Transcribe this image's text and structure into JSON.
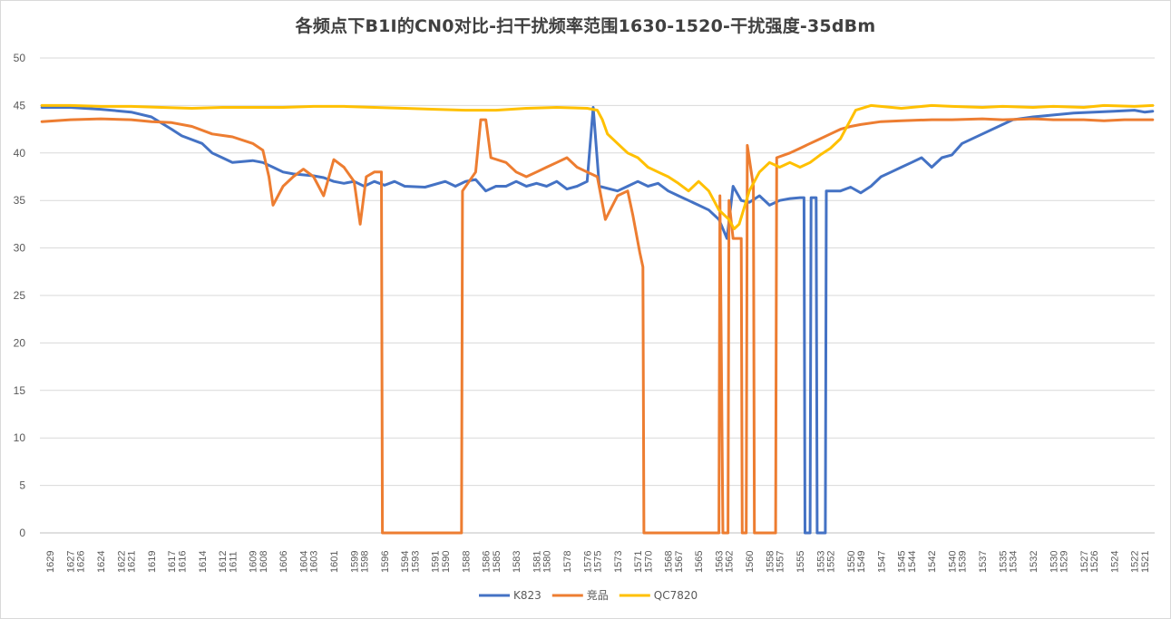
{
  "chart_data": {
    "type": "line",
    "title": "各频点下B1I的CN0对比-扫干扰频率范围1630-1520-干扰强度-35dBm",
    "xlabel": "",
    "ylabel": "",
    "ylim": [
      0,
      50
    ],
    "yticks": [
      0,
      5,
      10,
      15,
      20,
      25,
      30,
      35,
      40,
      45,
      50
    ],
    "xlim": [
      1630,
      1520
    ],
    "xticks": [
      1629,
      1627,
      1626,
      1624,
      1622,
      1621,
      1619,
      1617,
      1616,
      1614,
      1612,
      1611,
      1609,
      1608,
      1606,
      1604,
      1603,
      1601,
      1599,
      1598,
      1596,
      1594,
      1593,
      1591,
      1590,
      1588,
      1586,
      1585,
      1583,
      1581,
      1580,
      1578,
      1576,
      1575,
      1573,
      1571,
      1570,
      1568,
      1567,
      1565,
      1563,
      1562,
      1560,
      1558,
      1557,
      1555,
      1553,
      1552,
      1550,
      1549,
      1547,
      1545,
      1544,
      1542,
      1540,
      1539,
      1537,
      1535,
      1534,
      1532,
      1530,
      1529,
      1527,
      1526,
      1524,
      1522,
      1521
    ],
    "grid": "horizontal",
    "legend_position": "bottom",
    "series": [
      {
        "name": "K823",
        "color": "#4472c4",
        "points": [
          [
            1629.8,
            44.8
          ],
          [
            1627,
            44.8
          ],
          [
            1624,
            44.6
          ],
          [
            1621,
            44.3
          ],
          [
            1619,
            43.8
          ],
          [
            1617,
            42.5
          ],
          [
            1616,
            41.8
          ],
          [
            1614,
            41.0
          ],
          [
            1613,
            40.0
          ],
          [
            1612,
            39.5
          ],
          [
            1611,
            39.0
          ],
          [
            1609,
            39.2
          ],
          [
            1608,
            39.0
          ],
          [
            1607,
            38.5
          ],
          [
            1606,
            38.0
          ],
          [
            1605,
            37.8
          ],
          [
            1603,
            37.6
          ],
          [
            1602,
            37.4
          ],
          [
            1601,
            37.0
          ],
          [
            1600,
            36.8
          ],
          [
            1599,
            37.0
          ],
          [
            1598,
            36.5
          ],
          [
            1597,
            37.0
          ],
          [
            1596,
            36.6
          ],
          [
            1595,
            37.0
          ],
          [
            1594,
            36.5
          ],
          [
            1592,
            36.4
          ],
          [
            1590,
            37.0
          ],
          [
            1589,
            36.5
          ],
          [
            1588,
            37.0
          ],
          [
            1587,
            37.2
          ],
          [
            1586,
            36.0
          ],
          [
            1585,
            36.5
          ],
          [
            1584,
            36.5
          ],
          [
            1583,
            37.0
          ],
          [
            1582,
            36.5
          ],
          [
            1581,
            36.8
          ],
          [
            1580,
            36.5
          ],
          [
            1579,
            37.0
          ],
          [
            1578,
            36.2
          ],
          [
            1577,
            36.5
          ],
          [
            1576,
            37.0
          ],
          [
            1575.4,
            44.8
          ],
          [
            1574.8,
            36.5
          ],
          [
            1573,
            36.0
          ],
          [
            1572,
            36.5
          ],
          [
            1571,
            37.0
          ],
          [
            1570,
            36.5
          ],
          [
            1569,
            36.8
          ],
          [
            1568,
            36.0
          ],
          [
            1567,
            35.5
          ],
          [
            1566,
            35.0
          ],
          [
            1565,
            34.5
          ],
          [
            1564,
            34.0
          ],
          [
            1563,
            33.0
          ],
          [
            1562.2,
            31.0
          ],
          [
            1561.6,
            36.5
          ],
          [
            1560.8,
            35.0
          ],
          [
            1560,
            34.8
          ],
          [
            1559,
            35.5
          ],
          [
            1558,
            34.5
          ],
          [
            1557,
            35.0
          ],
          [
            1556,
            35.2
          ],
          [
            1555,
            35.3
          ],
          [
            1554.6,
            35.3
          ],
          [
            1554.5,
            0
          ],
          [
            1554,
            0
          ],
          [
            1553.9,
            35.3
          ],
          [
            1553.4,
            35.3
          ],
          [
            1553.3,
            0
          ],
          [
            1552.5,
            0
          ],
          [
            1552.4,
            36.0
          ],
          [
            1551,
            36.0
          ],
          [
            1550,
            36.4
          ],
          [
            1549,
            35.8
          ],
          [
            1548,
            36.5
          ],
          [
            1547,
            37.5
          ],
          [
            1546,
            38.0
          ],
          [
            1545,
            38.5
          ],
          [
            1544,
            39.0
          ],
          [
            1543,
            39.5
          ],
          [
            1542,
            38.5
          ],
          [
            1541,
            39.5
          ],
          [
            1540,
            39.8
          ],
          [
            1539,
            41.0
          ],
          [
            1537,
            42.0
          ],
          [
            1535,
            43.0
          ],
          [
            1534,
            43.5
          ],
          [
            1532,
            43.8
          ],
          [
            1530,
            44.0
          ],
          [
            1528,
            44.2
          ],
          [
            1526,
            44.3
          ],
          [
            1524,
            44.4
          ],
          [
            1522,
            44.5
          ],
          [
            1521,
            44.3
          ],
          [
            1520.2,
            44.4
          ]
        ]
      },
      {
        "name": "竞品",
        "color": "#ed7d31",
        "points": [
          [
            1629.8,
            43.3
          ],
          [
            1627,
            43.5
          ],
          [
            1624,
            43.6
          ],
          [
            1621,
            43.5
          ],
          [
            1619,
            43.3
          ],
          [
            1617,
            43.2
          ],
          [
            1615,
            42.8
          ],
          [
            1613,
            42.0
          ],
          [
            1611,
            41.7
          ],
          [
            1609,
            41.0
          ],
          [
            1608,
            40.3
          ],
          [
            1607.4,
            37.5
          ],
          [
            1607,
            34.5
          ],
          [
            1606,
            36.5
          ],
          [
            1605,
            37.5
          ],
          [
            1604,
            38.3
          ],
          [
            1603,
            37.5
          ],
          [
            1602,
            35.5
          ],
          [
            1601,
            39.3
          ],
          [
            1600,
            38.5
          ],
          [
            1599,
            37.0
          ],
          [
            1598.4,
            32.5
          ],
          [
            1597.8,
            37.5
          ],
          [
            1597,
            38.0
          ],
          [
            1596.3,
            38.0
          ],
          [
            1596.2,
            0
          ],
          [
            1588.4,
            0
          ],
          [
            1588.3,
            36.0
          ],
          [
            1587,
            38.0
          ],
          [
            1586.5,
            43.5
          ],
          [
            1586,
            43.5
          ],
          [
            1585.5,
            39.5
          ],
          [
            1584,
            39.0
          ],
          [
            1583,
            38.0
          ],
          [
            1582,
            37.5
          ],
          [
            1581,
            38.0
          ],
          [
            1580,
            38.5
          ],
          [
            1579,
            39.0
          ],
          [
            1578,
            39.5
          ],
          [
            1577,
            38.5
          ],
          [
            1576,
            38.0
          ],
          [
            1575,
            37.5
          ],
          [
            1574.2,
            33.0
          ],
          [
            1573,
            35.5
          ],
          [
            1572,
            36.0
          ],
          [
            1571.5,
            33.5
          ],
          [
            1570.8,
            29.5
          ],
          [
            1570.5,
            28.0
          ],
          [
            1570.4,
            0
          ],
          [
            1563,
            0
          ],
          [
            1562.9,
            35.5
          ],
          [
            1562.6,
            0
          ],
          [
            1562.1,
            0
          ],
          [
            1562,
            35.0
          ],
          [
            1561.6,
            31.0
          ],
          [
            1560.8,
            31.0
          ],
          [
            1560.7,
            0
          ],
          [
            1560.3,
            0
          ],
          [
            1560.2,
            40.8
          ],
          [
            1559.6,
            36.5
          ],
          [
            1559.5,
            0
          ],
          [
            1557.4,
            0
          ],
          [
            1557.3,
            39.5
          ],
          [
            1556,
            40.0
          ],
          [
            1555,
            40.5
          ],
          [
            1554,
            41.0
          ],
          [
            1553,
            41.5
          ],
          [
            1552,
            42.0
          ],
          [
            1551,
            42.5
          ],
          [
            1550,
            42.8
          ],
          [
            1549,
            43.0
          ],
          [
            1547,
            43.3
          ],
          [
            1545,
            43.4
          ],
          [
            1542,
            43.5
          ],
          [
            1540,
            43.5
          ],
          [
            1537,
            43.6
          ],
          [
            1535,
            43.5
          ],
          [
            1532,
            43.6
          ],
          [
            1530,
            43.5
          ],
          [
            1527,
            43.5
          ],
          [
            1525,
            43.4
          ],
          [
            1523,
            43.5
          ],
          [
            1520.2,
            43.5
          ]
        ]
      },
      {
        "name": "QC7820",
        "color": "#ffc000",
        "points": [
          [
            1629.8,
            45.0
          ],
          [
            1627,
            45.0
          ],
          [
            1624,
            44.9
          ],
          [
            1621,
            44.9
          ],
          [
            1618,
            44.8
          ],
          [
            1615,
            44.7
          ],
          [
            1612,
            44.8
          ],
          [
            1609,
            44.8
          ],
          [
            1606,
            44.8
          ],
          [
            1603,
            44.9
          ],
          [
            1600,
            44.9
          ],
          [
            1597,
            44.8
          ],
          [
            1594,
            44.7
          ],
          [
            1591,
            44.6
          ],
          [
            1588,
            44.5
          ],
          [
            1585,
            44.5
          ],
          [
            1582,
            44.7
          ],
          [
            1579,
            44.8
          ],
          [
            1576,
            44.7
          ],
          [
            1575,
            44.5
          ],
          [
            1574.5,
            43.5
          ],
          [
            1574,
            42.0
          ],
          [
            1573,
            41.0
          ],
          [
            1572,
            40.0
          ],
          [
            1571,
            39.5
          ],
          [
            1570,
            38.5
          ],
          [
            1569,
            38.0
          ],
          [
            1568,
            37.5
          ],
          [
            1567,
            36.8
          ],
          [
            1566,
            36.0
          ],
          [
            1565,
            37.0
          ],
          [
            1564,
            36.0
          ],
          [
            1563,
            34.0
          ],
          [
            1562,
            33.0
          ],
          [
            1561.5,
            32.0
          ],
          [
            1561,
            32.5
          ],
          [
            1560,
            36.0
          ],
          [
            1559,
            38.0
          ],
          [
            1558,
            39.0
          ],
          [
            1557,
            38.5
          ],
          [
            1556,
            39.0
          ],
          [
            1555,
            38.5
          ],
          [
            1554,
            39.0
          ],
          [
            1553,
            39.8
          ],
          [
            1552,
            40.5
          ],
          [
            1551,
            41.5
          ],
          [
            1550.5,
            42.5
          ],
          [
            1549.5,
            44.5
          ],
          [
            1548,
            45.0
          ],
          [
            1545,
            44.7
          ],
          [
            1542,
            45.0
          ],
          [
            1540,
            44.9
          ],
          [
            1537,
            44.8
          ],
          [
            1535,
            44.9
          ],
          [
            1532,
            44.8
          ],
          [
            1530,
            44.9
          ],
          [
            1527,
            44.8
          ],
          [
            1525,
            45.0
          ],
          [
            1522,
            44.9
          ],
          [
            1520.2,
            45.0
          ]
        ]
      }
    ]
  }
}
